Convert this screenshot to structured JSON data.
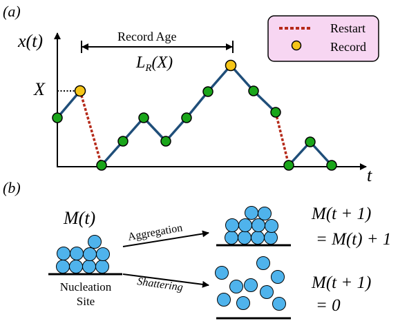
{
  "panel_a": {
    "label": "(a)",
    "y_axis_label": "x(t)",
    "x_axis_label": "t",
    "x_marker_label": "X",
    "record_age_title": "Record Age",
    "record_age_symbol": "L",
    "record_age_subscript": "R",
    "record_age_arg": "(X)",
    "legend": {
      "restart_label": "Restart",
      "record_label": "Record"
    },
    "colors": {
      "walk_line": "#1f4e79",
      "walk_point": "#1aa51a",
      "record_point": "#f5c518",
      "restart_line": "#b52a1a",
      "legend_bg": "#f7d6f2"
    }
  },
  "panel_b": {
    "label": "(b)",
    "mass_label": "M(t)",
    "nucleation_line1": "Nucleation",
    "nucleation_line2": "Site",
    "aggregation_label": "Aggregation",
    "shattering_label": "Shattering",
    "eq_aggregation_line1": "M(t + 1)",
    "eq_aggregation_line2": "= M(t) + 1",
    "eq_shattering_line1": "M(t + 1)",
    "eq_shattering_line2": "= 0",
    "colors": {
      "particle": "#4fb3ec"
    }
  }
}
